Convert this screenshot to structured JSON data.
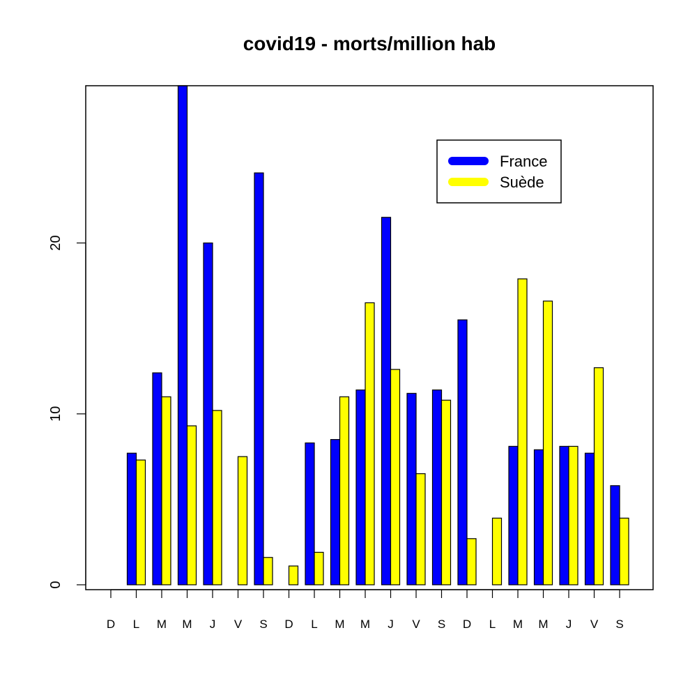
{
  "chart_data": {
    "type": "bar",
    "title": "covid19 - morts/million hab",
    "xlabel": "",
    "ylabel": "",
    "ylim": [
      0,
      29.2
    ],
    "yticks": [
      0,
      10,
      20
    ],
    "categories": [
      "D",
      "L",
      "M",
      "M",
      "J",
      "V",
      "S",
      "D",
      "L",
      "M",
      "M",
      "J",
      "V",
      "S",
      "D",
      "L",
      "M",
      "M",
      "J",
      "V",
      "S"
    ],
    "series": [
      {
        "name": "France",
        "color": "#0000ff",
        "values": [
          0,
          7.7,
          12.4,
          29.2,
          20.0,
          0,
          24.1,
          0,
          8.3,
          8.5,
          11.4,
          21.5,
          11.2,
          11.4,
          15.5,
          0,
          8.1,
          7.9,
          8.1,
          7.7,
          5.8
        ]
      },
      {
        "name": "Suède",
        "color": "#ffff00",
        "values": [
          0,
          7.3,
          11.0,
          9.3,
          10.2,
          7.5,
          1.6,
          1.1,
          1.9,
          11.0,
          16.5,
          12.6,
          6.5,
          10.8,
          2.7,
          3.9,
          17.9,
          16.6,
          8.1,
          12.7,
          3.9
        ]
      }
    ],
    "legend": {
      "position": "top-right",
      "entries": [
        "France",
        "Suède"
      ]
    }
  }
}
